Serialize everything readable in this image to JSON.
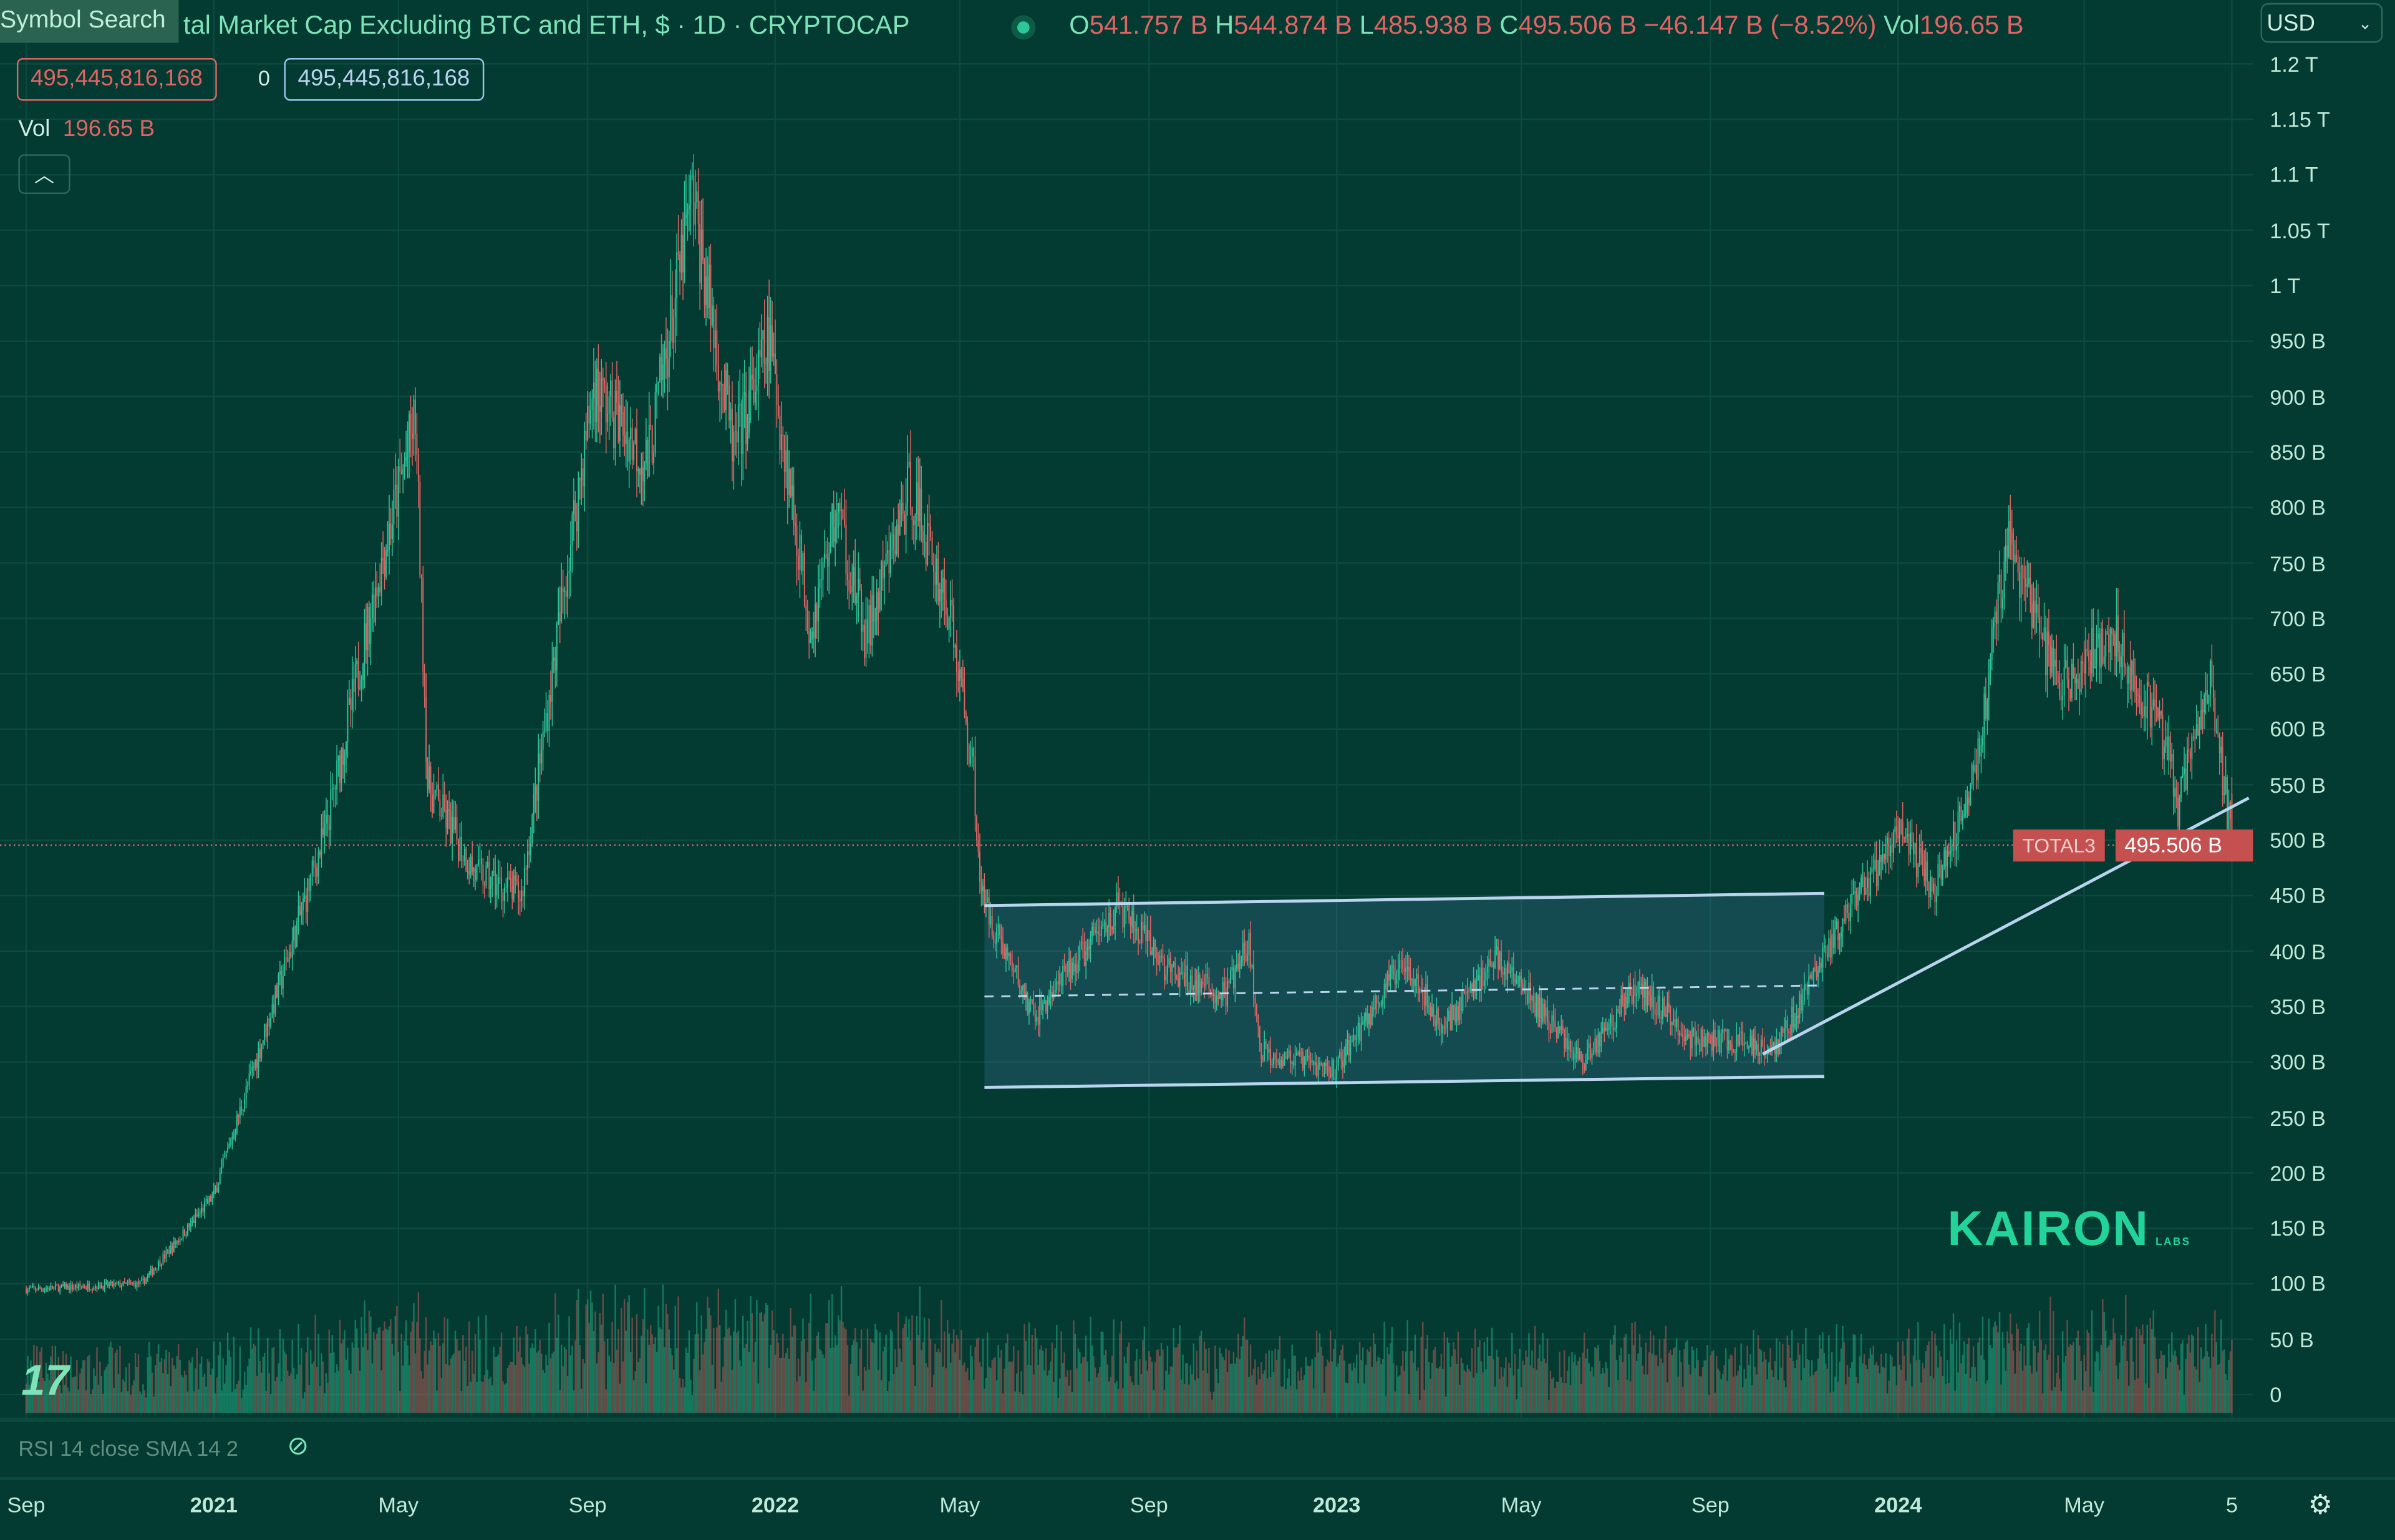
{
  "header": {
    "symbol_search": "Symbol Search",
    "title": "Total Market Cap Excluding BTC and ETH, $ · 1D · CRYPTOCAP",
    "title_visible": "tal Market Cap Excluding BTC and ETH, $ · 1D · CRYPTOCAP",
    "o_label": "O",
    "o": "541.757 B",
    "h_label": "H",
    "h": "544.874 B",
    "l_label": "L",
    "l": "485.938 B",
    "c_label": "C",
    "c": "495.506 B",
    "change": "−46.147 B (−8.52%)",
    "vol_label": "Vol",
    "vol": "196.65 B",
    "currency": "USD"
  },
  "order": {
    "sell": "495,445,816,168",
    "spread": "0",
    "buy": "495,445,816,168"
  },
  "volume_legend": {
    "label": "Vol",
    "value": "196.65 B"
  },
  "rsi_legend": "RSI 14 close SMA 14 2",
  "price_tag": {
    "symbol": "TOTAL3",
    "value": "495.506 B"
  },
  "watermark": "KAIRON",
  "watermark_small": "LABS",
  "colors": {
    "background": "#033a31",
    "up": "#2bc79a",
    "down": "#e06464",
    "text_up": "#7fe3b8",
    "drawing": "#b8d4ee"
  },
  "chart_data": {
    "type": "candlestick",
    "interval": "1D",
    "yaxis_ticks": [
      "1.2 T",
      "1.15 T",
      "1.1 T",
      "1.05 T",
      "1 T",
      "950 B",
      "900 B",
      "850 B",
      "800 B",
      "750 B",
      "700 B",
      "650 B",
      "600 B",
      "550 B",
      "500 B",
      "450 B",
      "400 B",
      "350 B",
      "300 B",
      "250 B",
      "200 B",
      "150 B",
      "100 B",
      "50 B",
      "0"
    ],
    "xaxis_ticks": [
      "Sep",
      "2021",
      "May",
      "Sep",
      "2022",
      "May",
      "Sep",
      "2023",
      "May",
      "Sep",
      "2024",
      "May",
      "5"
    ],
    "ylim_billions": [
      0,
      1200
    ],
    "close_path_billions": [
      [
        "2020-09-01",
        95
      ],
      [
        "2020-11-15",
        100
      ],
      [
        "2020-12-15",
        150
      ],
      [
        "2021-01-01",
        180
      ],
      [
        "2021-02-15",
        380
      ],
      [
        "2021-03-15",
        510
      ],
      [
        "2021-04-15",
        720
      ],
      [
        "2021-05-12",
        880
      ],
      [
        "2021-05-20",
        550
      ],
      [
        "2021-06-20",
        470
      ],
      [
        "2021-07-20",
        450
      ],
      [
        "2021-08-20",
        760
      ],
      [
        "2021-09-05",
        910
      ],
      [
        "2021-10-10",
        840
      ],
      [
        "2021-11-08",
        1080
      ],
      [
        "2021-12-05",
        850
      ],
      [
        "2021-12-28",
        950
      ],
      [
        "2022-01-24",
        690
      ],
      [
        "2022-02-10",
        800
      ],
      [
        "2022-03-01",
        680
      ],
      [
        "2022-03-30",
        820
      ],
      [
        "2022-04-25",
        700
      ],
      [
        "2022-05-10",
        560
      ],
      [
        "2022-05-15",
        450
      ],
      [
        "2022-06-18",
        340
      ],
      [
        "2022-08-12",
        440
      ],
      [
        "2022-09-15",
        380
      ],
      [
        "2022-10-20",
        360
      ],
      [
        "2022-11-05",
        405
      ],
      [
        "2022-11-12",
        310
      ],
      [
        "2022-12-30",
        292
      ],
      [
        "2023-02-15",
        395
      ],
      [
        "2023-03-10",
        330
      ],
      [
        "2023-04-15",
        395
      ],
      [
        "2023-06-10",
        300
      ],
      [
        "2023-07-15",
        370
      ],
      [
        "2023-08-20",
        320
      ],
      [
        "2023-10-15",
        315
      ],
      [
        "2023-11-15",
        400
      ],
      [
        "2023-12-10",
        455
      ],
      [
        "2024-01-01",
        510
      ],
      [
        "2024-01-25",
        455
      ],
      [
        "2024-02-20",
        560
      ],
      [
        "2024-03-12",
        770
      ],
      [
        "2024-04-15",
        635
      ],
      [
        "2024-05-20",
        690
      ],
      [
        "2024-06-25",
        580
      ],
      [
        "2024-07-01",
        530
      ],
      [
        "2024-07-22",
        645
      ],
      [
        "2024-08-05",
        495.5
      ]
    ],
    "last_close_billions": 495.506,
    "drawings": {
      "channel_top": [
        [
          "2022-05-17",
          441
        ],
        [
          "2023-11-14",
          452
        ]
      ],
      "channel_mid": [
        [
          "2022-05-17",
          359
        ],
        [
          "2023-11-14",
          369
        ]
      ],
      "channel_bottom": [
        [
          "2022-05-17",
          277
        ],
        [
          "2023-11-14",
          287
        ]
      ],
      "trendline": [
        [
          "2023-10-05",
          307
        ],
        [
          "2024-08-16",
          538
        ]
      ]
    }
  }
}
